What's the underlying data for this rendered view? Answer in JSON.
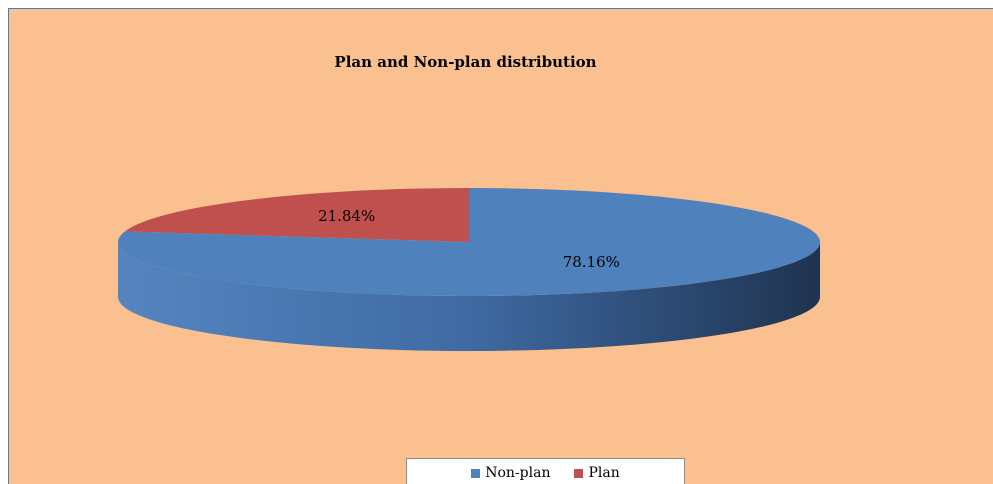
{
  "chart_data": {
    "type": "pie",
    "title": "Plan and Non-plan distribution",
    "slices": [
      {
        "name": "Non-plan",
        "value": 78.16,
        "label": "78.16%",
        "color": "#4f81bd",
        "side_color": "#2b4a75"
      },
      {
        "name": "Plan",
        "value": 21.84,
        "label": "21.84%",
        "color": "#c0504d",
        "side_color": "#8c3a38"
      }
    ],
    "style": "3D",
    "legend_position": "bottom",
    "background_color": "#fac090"
  }
}
